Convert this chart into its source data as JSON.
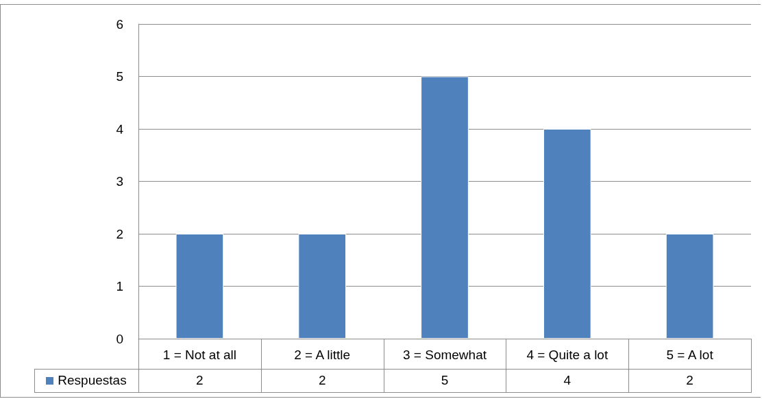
{
  "chart_data": {
    "type": "bar",
    "categories": [
      "1 = Not at all",
      "2 = A little",
      "3 = Somewhat",
      "4 = Quite a lot",
      "5 = A lot"
    ],
    "series": [
      {
        "name": "Respuestas",
        "color": "#4f81bd",
        "values": [
          2,
          2,
          5,
          4,
          2
        ]
      }
    ],
    "ylim": [
      0,
      6
    ],
    "yticks": [
      0,
      1,
      2,
      3,
      4,
      5,
      6
    ],
    "grid": "y",
    "legend": "bottom left",
    "data_labels": true
  }
}
